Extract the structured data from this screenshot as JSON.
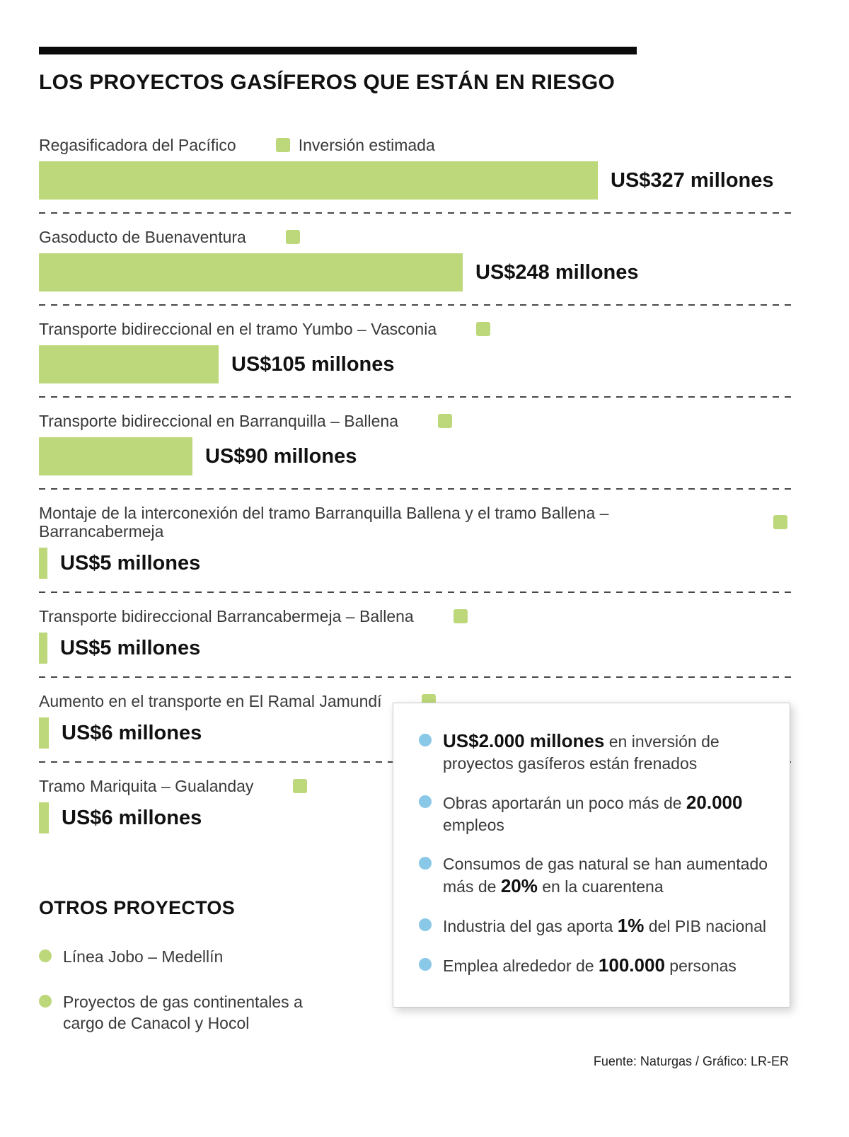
{
  "title": "LOS PROYECTOS GASÍFEROS QUE ESTÁN EN RIESGO",
  "legend": {
    "label": "Inversión estimada"
  },
  "chart_data": {
    "type": "bar",
    "orientation": "horizontal",
    "title": "LOS PROYECTOS GASÍFEROS QUE ESTÁN EN RIESGO",
    "legend": [
      "Inversión estimada"
    ],
    "unit": "US$ millones",
    "categories": [
      "Regasificadora del Pacífico",
      "Gasoducto de Buenaventura",
      "Transporte bidireccional en el tramo Yumbo – Vasconia",
      "Transporte bidireccional en Barranquilla – Ballena",
      "Montaje de la interconexión del tramo Barranquilla Ballena y el tramo Ballena – Barrancabermeja",
      "Transporte bidireccional Barrancabermeja – Ballena",
      "Aumento en el transporte en El Ramal Jamundí",
      "Tramo Mariquita – Gualanday"
    ],
    "values": [
      327,
      248,
      105,
      90,
      5,
      5,
      6,
      6
    ],
    "value_labels": [
      "US$327 millones",
      "US$248 millones",
      "US$105 millones",
      "US$90 millones",
      "US$5 millones",
      "US$5 millones",
      "US$6 millones",
      "US$6 millones"
    ],
    "xlim": [
      0,
      327
    ],
    "grid": false,
    "legend_position": "inline-top"
  },
  "otros": {
    "heading": "OTROS PROYECTOS",
    "items": [
      "Línea Jobo – Medellín",
      "Proyectos de gas continentales a cargo de Canacol y Hocol"
    ]
  },
  "callout": {
    "items": [
      {
        "segments": [
          {
            "text": "US$2.000 millones",
            "bold": true
          },
          {
            "text": " en inversión de proyectos gasíferos están frenados",
            "bold": false
          }
        ]
      },
      {
        "segments": [
          {
            "text": "Obras aportarán un poco más de ",
            "bold": false
          },
          {
            "text": "20.000",
            "bold": true
          },
          {
            "text": " empleos",
            "bold": false
          }
        ]
      },
      {
        "segments": [
          {
            "text": "Consumos de gas natural se han aumentado más de ",
            "bold": false
          },
          {
            "text": "20%",
            "bold": true
          },
          {
            "text": " en la cuarentena",
            "bold": false
          }
        ]
      },
      {
        "segments": [
          {
            "text": "Industria del gas aporta ",
            "bold": false
          },
          {
            "text": "1%",
            "bold": true
          },
          {
            "text": " del PIB nacional",
            "bold": false
          }
        ]
      },
      {
        "segments": [
          {
            "text": "Emplea alrededor de ",
            "bold": false
          },
          {
            "text": "100.000",
            "bold": true
          },
          {
            "text": " personas",
            "bold": false
          }
        ]
      }
    ]
  },
  "footer": "Fuente: Naturgas / Gráfico: LR-ER",
  "colors": {
    "bar": "#bdd87a",
    "green_bullet": "#bdd87a",
    "blue_bullet": "#8ac8e8",
    "rule": "#0a0a0a"
  }
}
